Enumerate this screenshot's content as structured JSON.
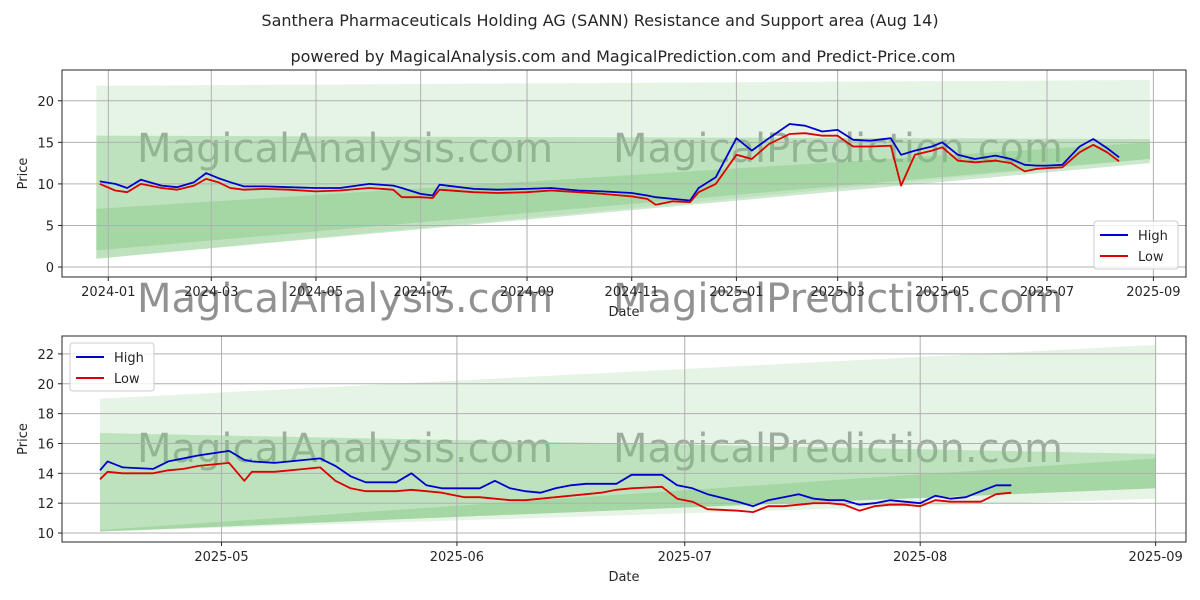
{
  "title": "Santhera Pharmaceuticals Holding AG (SANN) Resistance and Support area (Aug 14)",
  "subtitle": "powered by MagicalAnalysis.com and MagicalPrediction.com and Predict-Price.com",
  "watermarks": [
    "MagicalAnalysis.com",
    "MagicalPrediction.com"
  ],
  "colors": {
    "high": "#0000cc",
    "low": "#dd0000",
    "band_dark": "#7cc47c",
    "band_light": "#b8e0b8"
  },
  "chart_data": [
    {
      "type": "line",
      "xlabel": "Date",
      "ylabel": "Price",
      "xlim": [
        "2023-12-05",
        "2025-09-20"
      ],
      "ylim": [
        -1.2,
        23.7
      ],
      "x_ticks": [
        "2024-01",
        "2024-03",
        "2024-05",
        "2024-07",
        "2024-09",
        "2024-11",
        "2025-01",
        "2025-03",
        "2025-05",
        "2025-07",
        "2025-09"
      ],
      "y_ticks": [
        0,
        5,
        10,
        15,
        20
      ],
      "grid": true,
      "legend": "lower right",
      "bands": [
        {
          "tone": "light",
          "x": [
            "2023-12-25",
            "2025-08-30"
          ],
          "upper": [
            21.8,
            22.5
          ],
          "lower": [
            1.0,
            13.0
          ]
        },
        {
          "tone": "dark",
          "x": [
            "2023-12-25",
            "2025-08-30"
          ],
          "upper": [
            15.8,
            15.4
          ],
          "lower": [
            2.0,
            13.0
          ]
        },
        {
          "tone": "dark",
          "x": [
            "2023-12-25",
            "2025-08-30"
          ],
          "upper": [
            7.0,
            15.0
          ],
          "lower": [
            1.0,
            12.5
          ]
        }
      ],
      "x": [
        "2023-12-27",
        "2024-01-05",
        "2024-01-12",
        "2024-01-20",
        "2024-02-01",
        "2024-02-10",
        "2024-02-20",
        "2024-02-27",
        "2024-03-05",
        "2024-03-12",
        "2024-03-20",
        "2024-04-01",
        "2024-04-15",
        "2024-05-01",
        "2024-05-15",
        "2024-06-01",
        "2024-06-15",
        "2024-06-20",
        "2024-07-01",
        "2024-07-08",
        "2024-07-12",
        "2024-08-01",
        "2024-08-15",
        "2024-09-01",
        "2024-09-15",
        "2024-10-01",
        "2024-10-15",
        "2024-11-01",
        "2024-11-10",
        "2024-11-15",
        "2024-11-25",
        "2024-12-05",
        "2024-12-10",
        "2024-12-20",
        "2025-01-01",
        "2025-01-10",
        "2025-01-20",
        "2025-02-01",
        "2025-02-10",
        "2025-02-20",
        "2025-03-01",
        "2025-03-10",
        "2025-03-20",
        "2025-04-01",
        "2025-04-07",
        "2025-04-15",
        "2025-04-25",
        "2025-05-01",
        "2025-05-10",
        "2025-05-20",
        "2025-06-01",
        "2025-06-10",
        "2025-06-18",
        "2025-06-25",
        "2025-07-01",
        "2025-07-10",
        "2025-07-20",
        "2025-07-28",
        "2025-08-05",
        "2025-08-12"
      ],
      "series": [
        {
          "name": "High",
          "values": [
            10.3,
            10.0,
            9.5,
            10.5,
            9.8,
            9.6,
            10.2,
            11.3,
            10.7,
            10.2,
            9.7,
            9.7,
            9.6,
            9.5,
            9.5,
            10.0,
            9.8,
            9.5,
            8.8,
            8.6,
            9.9,
            9.4,
            9.3,
            9.4,
            9.5,
            9.2,
            9.1,
            8.9,
            8.6,
            8.4,
            8.2,
            8.0,
            9.5,
            10.8,
            15.5,
            14.0,
            15.5,
            17.2,
            17.0,
            16.3,
            16.5,
            15.3,
            15.2,
            15.5,
            13.5,
            14.0,
            14.5,
            15.0,
            13.5,
            13.0,
            13.4,
            13.0,
            12.3,
            12.2,
            12.2,
            12.3,
            14.5,
            15.4,
            14.3,
            13.2
          ]
        },
        {
          "name": "Low",
          "values": [
            10.0,
            9.2,
            9.0,
            10.0,
            9.5,
            9.3,
            9.8,
            10.6,
            10.2,
            9.5,
            9.3,
            9.4,
            9.3,
            9.1,
            9.2,
            9.5,
            9.3,
            8.4,
            8.4,
            8.3,
            9.3,
            9.0,
            8.9,
            9.0,
            9.2,
            9.0,
            8.8,
            8.5,
            8.2,
            7.5,
            7.9,
            7.8,
            9.0,
            10.0,
            13.5,
            13.0,
            14.8,
            16.0,
            16.1,
            15.8,
            15.8,
            14.5,
            14.5,
            14.6,
            9.8,
            13.5,
            14.0,
            14.4,
            12.8,
            12.6,
            12.8,
            12.5,
            11.5,
            11.8,
            11.9,
            12.0,
            13.8,
            14.7,
            13.8,
            12.7
          ]
        }
      ]
    },
    {
      "type": "line",
      "xlabel": "Date",
      "ylabel": "Price",
      "xlim": [
        "2025-04-10",
        "2025-09-05"
      ],
      "ylim": [
        9.4,
        23.2
      ],
      "x_ticks": [
        "2025-05",
        "2025-06",
        "2025-07",
        "2025-08",
        "2025-09"
      ],
      "y_ticks": [
        10,
        12,
        14,
        16,
        18,
        20,
        22
      ],
      "grid": true,
      "legend": "upper left",
      "bands": [
        {
          "tone": "light",
          "x": [
            "2025-04-15",
            "2025-09-01"
          ],
          "upper": [
            19.0,
            22.6
          ],
          "lower": [
            10.1,
            12.3
          ]
        },
        {
          "tone": "dark",
          "x": [
            "2025-04-15",
            "2025-09-01"
          ],
          "upper": [
            16.7,
            15.3
          ],
          "lower": [
            10.1,
            13.0
          ]
        },
        {
          "tone": "dark",
          "x": [
            "2025-04-15",
            "2025-09-01"
          ],
          "upper": [
            10.2,
            15.0
          ],
          "lower": [
            10.1,
            13.0
          ]
        }
      ],
      "x": [
        "2025-04-15",
        "2025-04-16",
        "2025-04-18",
        "2025-04-22",
        "2025-04-24",
        "2025-04-26",
        "2025-04-28",
        "2025-05-02",
        "2025-05-04",
        "2025-05-05",
        "2025-05-08",
        "2025-05-12",
        "2025-05-14",
        "2025-05-16",
        "2025-05-18",
        "2025-05-20",
        "2025-05-24",
        "2025-05-26",
        "2025-05-28",
        "2025-05-30",
        "2025-06-02",
        "2025-06-04",
        "2025-06-06",
        "2025-06-08",
        "2025-06-10",
        "2025-06-12",
        "2025-06-14",
        "2025-06-16",
        "2025-06-18",
        "2025-06-20",
        "2025-06-22",
        "2025-06-24",
        "2025-06-28",
        "2025-06-30",
        "2025-07-02",
        "2025-07-04",
        "2025-07-08",
        "2025-07-10",
        "2025-07-12",
        "2025-07-14",
        "2025-07-16",
        "2025-07-18",
        "2025-07-20",
        "2025-07-22",
        "2025-07-24",
        "2025-07-26",
        "2025-07-28",
        "2025-07-30",
        "2025-08-01",
        "2025-08-03",
        "2025-08-05",
        "2025-08-07",
        "2025-08-09",
        "2025-08-11",
        "2025-08-13"
      ],
      "series": [
        {
          "name": "High",
          "values": [
            14.2,
            14.8,
            14.4,
            14.3,
            14.8,
            15.0,
            15.2,
            15.5,
            14.9,
            14.8,
            14.7,
            14.9,
            15.0,
            14.5,
            13.8,
            13.4,
            13.4,
            14.0,
            13.2,
            13.0,
            13.0,
            13.0,
            13.5,
            13.0,
            12.8,
            12.7,
            13.0,
            13.2,
            13.3,
            13.3,
            13.3,
            13.9,
            13.9,
            13.2,
            13.0,
            12.6,
            12.1,
            11.8,
            12.2,
            12.4,
            12.6,
            12.3,
            12.2,
            12.2,
            11.9,
            12.0,
            12.2,
            12.1,
            12.0,
            12.5,
            12.3,
            12.4,
            12.8,
            13.2,
            13.2
          ]
        },
        {
          "name": "Low",
          "values": [
            13.6,
            14.1,
            14.0,
            14.0,
            14.2,
            14.3,
            14.5,
            14.7,
            13.5,
            14.1,
            14.1,
            14.3,
            14.4,
            13.5,
            13.0,
            12.8,
            12.8,
            12.9,
            12.8,
            12.7,
            12.4,
            12.4,
            12.3,
            12.2,
            12.2,
            12.3,
            12.4,
            12.5,
            12.6,
            12.7,
            12.9,
            13.0,
            13.1,
            12.3,
            12.1,
            11.6,
            11.5,
            11.4,
            11.8,
            11.8,
            11.9,
            12.0,
            12.0,
            11.9,
            11.5,
            11.8,
            11.9,
            11.9,
            11.8,
            12.2,
            12.1,
            12.1,
            12.1,
            12.6,
            12.7
          ]
        }
      ]
    }
  ]
}
